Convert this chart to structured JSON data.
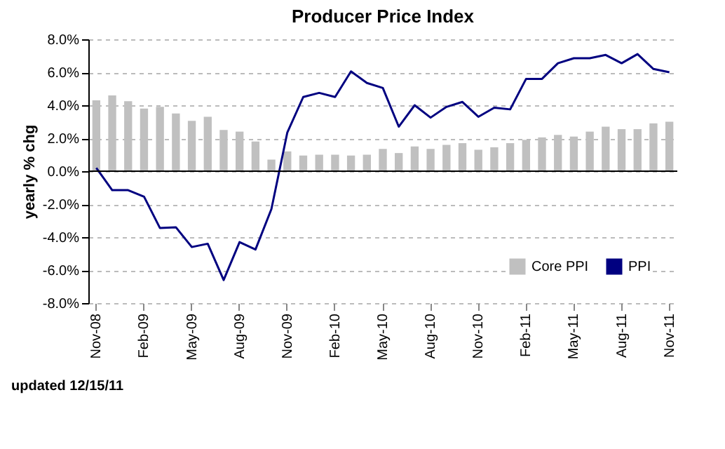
{
  "chart_data": {
    "type": "bar",
    "title": "Producer Price Index",
    "ylabel": "yearly % chg",
    "categories": [
      "Nov-08",
      null,
      null,
      "Feb-09",
      null,
      null,
      "May-09",
      null,
      null,
      "Aug-09",
      null,
      null,
      "Nov-09",
      null,
      null,
      "Feb-10",
      null,
      null,
      "May-10",
      null,
      null,
      "Aug-10",
      null,
      null,
      "Nov-10",
      null,
      null,
      "Feb-11",
      null,
      null,
      "May-11",
      null,
      null,
      "Aug-11",
      null,
      null,
      "Nov-11"
    ],
    "series": [
      {
        "name": "Core PPI",
        "color": "#c0c0c0",
        "values": [
          4.3,
          4.6,
          4.25,
          3.8,
          3.9,
          3.5,
          3.05,
          3.3,
          2.5,
          2.4,
          1.8,
          0.7,
          1.2,
          0.95,
          1.0,
          1.0,
          0.95,
          1.0,
          1.35,
          1.1,
          1.5,
          1.35,
          1.6,
          1.7,
          1.3,
          1.45,
          1.7,
          1.9,
          2.05,
          2.2,
          2.1,
          2.4,
          2.7,
          2.55,
          2.55,
          2.9,
          3.0
        ]
      },
      {
        "name": "PPI",
        "type": "line",
        "color": "#000080",
        "values": [
          0.2,
          -1.15,
          -1.15,
          -1.55,
          -3.45,
          -3.4,
          -4.6,
          -4.4,
          -6.6,
          -4.3,
          -4.75,
          -2.3,
          2.35,
          4.5,
          4.75,
          4.5,
          6.05,
          5.35,
          5.05,
          2.7,
          4.0,
          3.25,
          3.9,
          4.2,
          3.3,
          3.85,
          3.75,
          5.6,
          5.6,
          6.55,
          6.85,
          6.85,
          7.05,
          6.55,
          7.1,
          6.2,
          6.0
        ]
      }
    ],
    "ylim": [
      -8,
      8
    ],
    "yticks": [
      {
        "value": -8,
        "label": "-8.0%"
      },
      {
        "value": -6,
        "label": "-6.0%"
      },
      {
        "value": -4,
        "label": "-4.0%"
      },
      {
        "value": -2,
        "label": "-2.0%"
      },
      {
        "value": 0,
        "label": "0.0%"
      },
      {
        "value": 2,
        "label": "2.0%"
      },
      {
        "value": 4,
        "label": "4.0%"
      },
      {
        "value": 6,
        "label": "6.0%"
      },
      {
        "value": 8,
        "label": "8.0%"
      }
    ],
    "grid": "y",
    "legend": "bottom",
    "annotations": [
      "updated 12/15/11"
    ]
  }
}
